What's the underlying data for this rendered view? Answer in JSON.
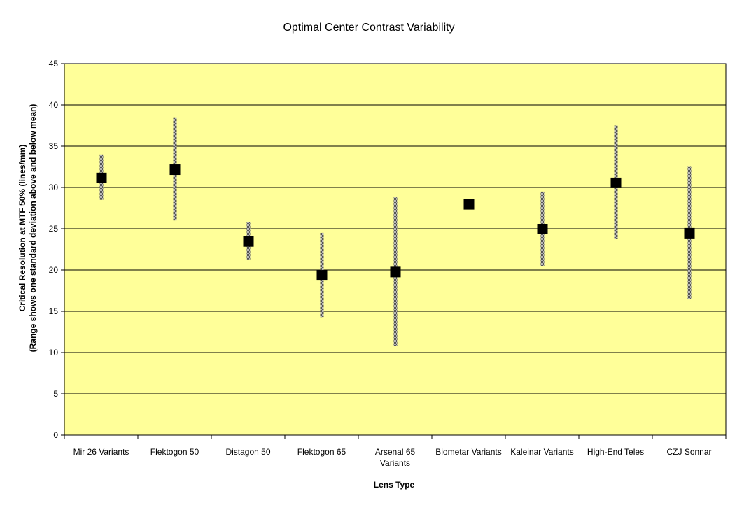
{
  "chart_data": {
    "type": "scatter",
    "title": "Optimal Center Contrast Variability",
    "xlabel": "Lens Type",
    "ylabel": [
      "Critical Resolution at MTF 50% (lines/mm)",
      "(Range shows one standard deviation above and below mean)"
    ],
    "categories": [
      [
        "Mir 26 Variants"
      ],
      [
        "Flektogon 50"
      ],
      [
        "Distagon 50"
      ],
      [
        "Flektogon 65"
      ],
      [
        "Arsenal 65",
        "Variants"
      ],
      [
        "Biometar Variants"
      ],
      [
        "Kaleinar Variants"
      ],
      [
        "High-End Teles"
      ],
      [
        "CZJ Sonnar"
      ]
    ],
    "mean": [
      31.2,
      32.2,
      23.5,
      19.4,
      19.8,
      28.0,
      25.0,
      30.6,
      24.5
    ],
    "high": [
      34.0,
      38.5,
      25.8,
      24.5,
      28.8,
      28.0,
      29.5,
      37.5,
      32.5
    ],
    "low": [
      28.5,
      26.0,
      21.2,
      14.3,
      10.8,
      28.0,
      20.5,
      23.8,
      16.5
    ],
    "ylim": [
      0,
      45
    ],
    "yticks": [
      0,
      5,
      10,
      15,
      20,
      25,
      30,
      35,
      40,
      45
    ],
    "grid": true,
    "legend": "none",
    "colors": {
      "plot_background": "#FFFF99",
      "marker": "#000000",
      "range_bar": "#8a8a8a",
      "gridline": "#000000"
    }
  }
}
